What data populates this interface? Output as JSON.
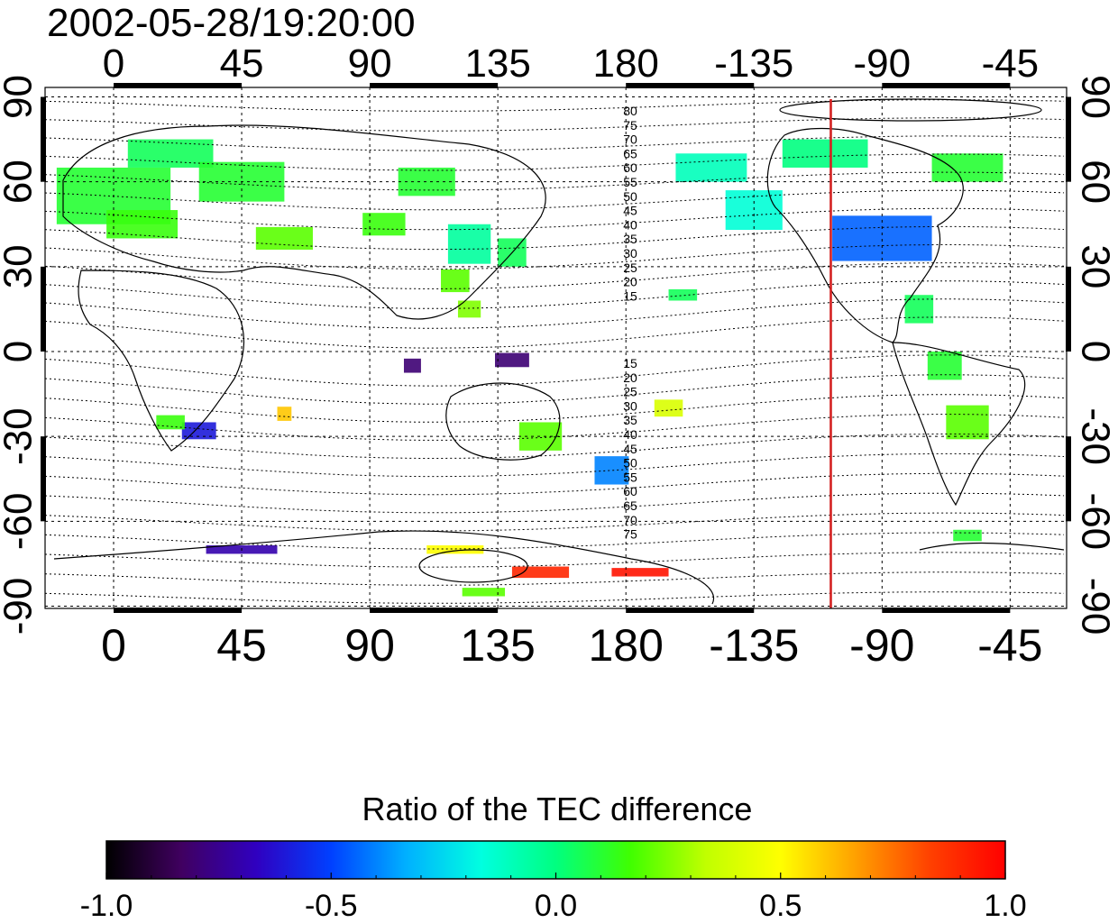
{
  "timestamp": "2002-05-28/19:20:00",
  "map": {
    "lon_labels": [
      "0",
      "45",
      "90",
      "135",
      "180",
      "-135",
      "-90",
      "-45"
    ],
    "lon_values": [
      0,
      45,
      90,
      135,
      180,
      225,
      270,
      315
    ],
    "lat_labels": [
      "90",
      "60",
      "30",
      "0",
      "-30",
      "-60",
      "-90"
    ],
    "lat_values": [
      90,
      60,
      30,
      0,
      -30,
      -60,
      -90
    ],
    "lon_range": [
      -22,
      337
    ],
    "lat_range": [
      -90,
      90
    ],
    "grid": true,
    "marker_line_longitude": 252,
    "marker_line_color": "#d42020",
    "contour_labels_north": [
      "80",
      "75",
      "70",
      "65",
      "60",
      "55",
      "50",
      "45",
      "40",
      "35",
      "30",
      "25",
      "20",
      "15"
    ],
    "contour_labels_south": [
      "15",
      "20",
      "25",
      "30",
      "35",
      "40",
      "45",
      "50",
      "55",
      "60",
      "65",
      "70",
      "75"
    ]
  },
  "colorbar": {
    "title": "Ratio of the TEC difference",
    "tick_labels": [
      "-1.0",
      "-0.5",
      "0.0",
      "0.5",
      "1.0"
    ],
    "tick_values": [
      -1.0,
      -0.5,
      0.0,
      0.5,
      1.0
    ],
    "range": [
      -1.0,
      1.0
    ],
    "stops": [
      "#000000",
      "#400060",
      "#3000c0",
      "#0040ff",
      "#00b0ff",
      "#00ffe0",
      "#00ff80",
      "#40ff00",
      "#c0ff00",
      "#ffff00",
      "#ffa000",
      "#ff4000",
      "#ff0000"
    ]
  },
  "chart_data": {
    "type": "heatmap",
    "title": "2002-05-28/19:20:00",
    "colorbar_label": "Ratio of the TEC difference",
    "xlim": [
      -22,
      337
    ],
    "ylim": [
      -90,
      90
    ],
    "value_range": [
      -1.0,
      1.0
    ],
    "patches": [
      {
        "lon": 0,
        "lat": 55,
        "w": 40,
        "h": 20,
        "v": 0.1
      },
      {
        "lon": 20,
        "lat": 70,
        "w": 30,
        "h": 10,
        "v": 0.05
      },
      {
        "lon": 10,
        "lat": 45,
        "w": 25,
        "h": 10,
        "v": 0.15
      },
      {
        "lon": 45,
        "lat": 60,
        "w": 30,
        "h": 14,
        "v": 0.1
      },
      {
        "lon": 60,
        "lat": 40,
        "w": 20,
        "h": 8,
        "v": 0.2
      },
      {
        "lon": 95,
        "lat": 45,
        "w": 15,
        "h": 8,
        "v": 0.15
      },
      {
        "lon": 110,
        "lat": 60,
        "w": 20,
        "h": 10,
        "v": 0.1
      },
      {
        "lon": 125,
        "lat": 38,
        "w": 15,
        "h": 14,
        "v": -0.05
      },
      {
        "lon": 120,
        "lat": 25,
        "w": 10,
        "h": 8,
        "v": 0.2
      },
      {
        "lon": 125,
        "lat": 15,
        "w": 8,
        "h": 6,
        "v": 0.25
      },
      {
        "lon": 140,
        "lat": 35,
        "w": 10,
        "h": 10,
        "v": 0.05
      },
      {
        "lon": 30,
        "lat": -28,
        "w": 12,
        "h": 6,
        "v": -0.6
      },
      {
        "lon": 20,
        "lat": -25,
        "w": 10,
        "h": 5,
        "v": 0.15
      },
      {
        "lon": 60,
        "lat": -22,
        "w": 5,
        "h": 5,
        "v": 0.6
      },
      {
        "lon": 105,
        "lat": -5,
        "w": 6,
        "h": 5,
        "v": -0.8
      },
      {
        "lon": 140,
        "lat": -3,
        "w": 12,
        "h": 5,
        "v": -0.8
      },
      {
        "lon": 150,
        "lat": -30,
        "w": 15,
        "h": 10,
        "v": 0.2
      },
      {
        "lon": 175,
        "lat": -42,
        "w": 12,
        "h": 10,
        "v": -0.4
      },
      {
        "lon": 195,
        "lat": -20,
        "w": 10,
        "h": 6,
        "v": 0.4
      },
      {
        "lon": 200,
        "lat": 20,
        "w": 10,
        "h": 4,
        "v": 0.05
      },
      {
        "lon": 210,
        "lat": 65,
        "w": 25,
        "h": 10,
        "v": -0.1
      },
      {
        "lon": 225,
        "lat": 50,
        "w": 20,
        "h": 14,
        "v": -0.15
      },
      {
        "lon": 270,
        "lat": 40,
        "w": 35,
        "h": 16,
        "v": -0.45
      },
      {
        "lon": 250,
        "lat": 70,
        "w": 30,
        "h": 10,
        "v": 0.0
      },
      {
        "lon": 300,
        "lat": 65,
        "w": 25,
        "h": 10,
        "v": 0.1
      },
      {
        "lon": 283,
        "lat": 15,
        "w": 10,
        "h": 10,
        "v": 0.05
      },
      {
        "lon": 292,
        "lat": -5,
        "w": 12,
        "h": 10,
        "v": 0.1
      },
      {
        "lon": 300,
        "lat": -25,
        "w": 15,
        "h": 12,
        "v": 0.2
      },
      {
        "lon": 300,
        "lat": -65,
        "w": 10,
        "h": 4,
        "v": 0.1
      },
      {
        "lon": 45,
        "lat": -70,
        "w": 25,
        "h": 3,
        "v": -0.7
      },
      {
        "lon": 120,
        "lat": -70,
        "w": 20,
        "h": 3,
        "v": 0.5
      },
      {
        "lon": 150,
        "lat": -78,
        "w": 20,
        "h": 4,
        "v": 0.9
      },
      {
        "lon": 185,
        "lat": -78,
        "w": 20,
        "h": 3,
        "v": 0.95
      },
      {
        "lon": 130,
        "lat": -85,
        "w": 15,
        "h": 3,
        "v": 0.2
      }
    ]
  }
}
